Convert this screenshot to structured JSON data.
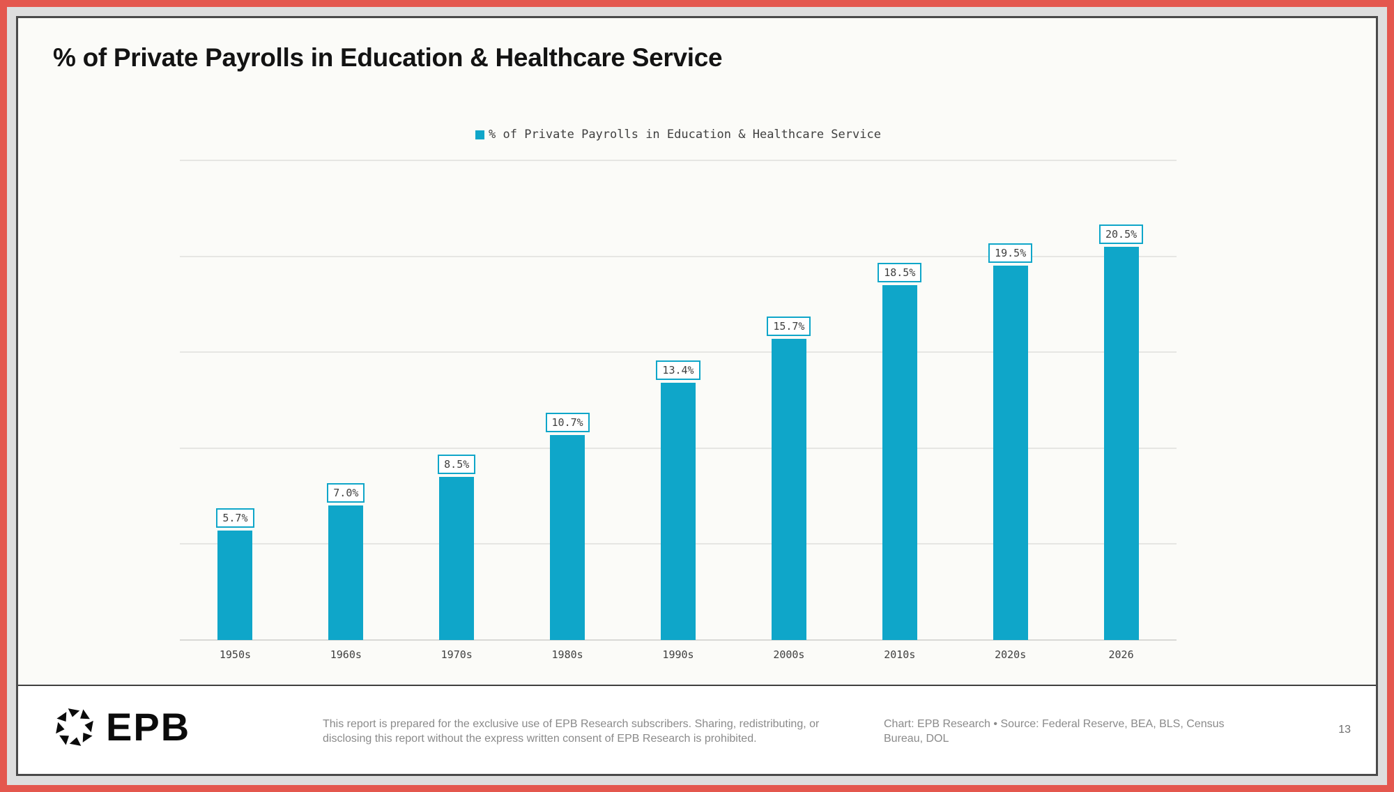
{
  "header": {
    "title": "% of Private Payrolls in Education & Healthcare Service"
  },
  "legend": {
    "label": "% of Private Payrolls in Education & Healthcare Service"
  },
  "chart_data": {
    "type": "bar",
    "title": "% of Private Payrolls in Education & Healthcare Service",
    "categories": [
      "1950s",
      "1960s",
      "1970s",
      "1980s",
      "1990s",
      "2000s",
      "2010s",
      "2020s",
      "2026"
    ],
    "values": [
      5.7,
      7.0,
      8.5,
      10.7,
      13.4,
      15.7,
      18.5,
      19.5,
      20.5
    ],
    "value_labels": [
      "5.7%",
      "7.0%",
      "8.5%",
      "10.7%",
      "13.4%",
      "15.7%",
      "18.5%",
      "19.5%",
      "20.5%"
    ],
    "xlabel": "",
    "ylabel": "",
    "ylim": [
      0,
      25
    ],
    "gridline_step": 5,
    "grid": "horizontal",
    "y_tick_labels_shown": false,
    "legend_position": "top-center"
  },
  "footer": {
    "logo_text": "EPB",
    "disclaimer": "This report is prepared for the exclusive use of EPB Research subscribers. Sharing, redistributing, or disclosing this report without the express written consent of EPB Research is prohibited.",
    "attribution": "Chart: EPB Research  •  Source: Federal Reserve, BEA, BLS, Census Bureau, DOL",
    "page_number": "13"
  },
  "colors": {
    "accent": "#0FA6C9",
    "frame_red": "#E4574E",
    "frame_gray": "#DEDEDE",
    "frame_dark": "#4A4A4A",
    "canvas": "#FBFBF8",
    "footer_bg": "#FFFFFF",
    "gridline": "#E6E6E3",
    "gridline_base": "#D9D9D6",
    "text_dark": "#3F3F3F",
    "text_muted": "#8A8A8A"
  }
}
